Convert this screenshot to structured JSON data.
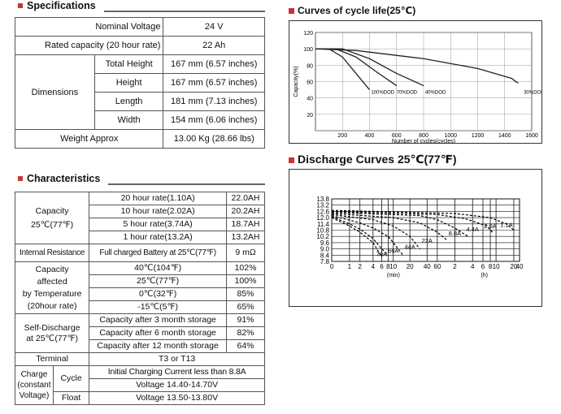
{
  "specs": {
    "title": "Specifications",
    "nominal_voltage_label": "Nominal Voltage",
    "nominal_voltage": "24 V",
    "rated_capacity_label": "Rated capacity (20 hour rate)",
    "rated_capacity": "22 Ah",
    "dimensions_label": "Dimensions",
    "total_height_label": "Total Height",
    "total_height": "167 mm (6.57 inches)",
    "height_label": "Height",
    "height": "167 mm (6.57 inches)",
    "length_label": "Length",
    "length": "181 mm (7.13 inches)",
    "width_label": "Width",
    "width": "154 mm (6.06 inches)",
    "weight_label": "Weight Approx",
    "weight": "13.00 Kg (28.66 lbs)"
  },
  "characteristics": {
    "title": "Characteristics",
    "capacity_label": "Capacity",
    "capacity_temp": "25℃(77℉)",
    "capacity_rows": [
      {
        "rate": "20 hour rate(1.10A)",
        "value": "22.0AH"
      },
      {
        "rate": "10 hour rate(2.02A)",
        "value": "20.2AH"
      },
      {
        "rate": "5 hour rate(3.74A)",
        "value": "18.7AH"
      },
      {
        "rate": "1 hour rate(13.2A)",
        "value": "13.2AH"
      }
    ],
    "internal_resistance_label": "Internal Resistance",
    "internal_resistance_cond": "Full charged Battery at 25℃(77℉)",
    "internal_resistance_value": "9 mΩ",
    "temp_label_1": "Capacity",
    "temp_label_2": "affected",
    "temp_label_3": "by Temperature",
    "temp_label_4": "(20hour rate)",
    "temp_rows": [
      {
        "temp": "40℃(104℉)",
        "value": "102%"
      },
      {
        "temp": "25℃(77℉)",
        "value": "100%"
      },
      {
        "temp": "0℃(32℉)",
        "value": "85%"
      },
      {
        "temp": "-15℃(5℉)",
        "value": "65%"
      }
    ],
    "self_discharge_label_1": "Self-Discharge",
    "self_discharge_label_2": "at 25℃(77℉)",
    "self_rows": [
      {
        "period": "Capacity after 3 month storage",
        "value": "91%"
      },
      {
        "period": "Capacity after 6 month storage",
        "value": "82%"
      },
      {
        "period": "Capacity after 12 month storage",
        "value": "64%"
      }
    ],
    "terminal_label": "Terminal",
    "terminal_value": "T3 or T13",
    "charge_label_1": "Charge",
    "charge_label_2": "(constant",
    "charge_label_3": "Voltage)",
    "cycle_label": "Cycle",
    "cycle_current": "Initial Charging Current less than 8.8A",
    "cycle_voltage": "Voltage 14.40-14.70V",
    "float_label": "Float",
    "float_voltage": "Voltage 13.50-13.80V"
  },
  "cycle_chart": {
    "title": "Curves of cycle life(25℃)",
    "ylabel": "Capacity(%)",
    "xlabel": "Number of cycles(cycles)",
    "yticks": [
      "120",
      "100",
      "80",
      "60",
      "40",
      "20"
    ],
    "xticks": [
      "200",
      "400",
      "600",
      "800",
      "1000",
      "1200",
      "1400",
      "1600"
    ],
    "dod_labels": [
      "100%DOD",
      "70%DOD",
      "40%DOD",
      "30%DOD"
    ]
  },
  "discharge_chart": {
    "title": "Discharge Curves 25℃(77℉)",
    "yticks": [
      "13.8",
      "13.2",
      "12.6",
      "12.0",
      "11.4",
      "10.8",
      "10.2",
      "9.6",
      "9.0",
      "8.4",
      "7.8"
    ],
    "xticks": [
      "0",
      "1",
      "2",
      "4",
      "6",
      "8",
      "10",
      "20",
      "40",
      "60",
      "2",
      "4",
      "6",
      "8",
      "10",
      "20",
      "40"
    ],
    "min_label": "(min)",
    "hour_label": "(h)",
    "curve_labels": [
      "79A",
      "66A",
      "44A",
      "22A",
      "8.8A",
      "4.4A",
      "2.0A",
      "1.1A"
    ]
  },
  "chart_data": [
    {
      "type": "line",
      "title": "Curves of cycle life(25℃)",
      "xlabel": "Number of cycles(cycles)",
      "ylabel": "Capacity(%)",
      "xlim": [
        0,
        1600
      ],
      "ylim": [
        0,
        120
      ],
      "grid": true,
      "series": [
        {
          "name": "100%DOD",
          "x": [
            0,
            100,
            200,
            300,
            400
          ],
          "y": [
            100,
            100,
            90,
            70,
            50
          ]
        },
        {
          "name": "70%DOD",
          "x": [
            0,
            150,
            300,
            450,
            600
          ],
          "y": [
            100,
            100,
            90,
            72,
            55
          ]
        },
        {
          "name": "40%DOD",
          "x": [
            0,
            200,
            400,
            600,
            800
          ],
          "y": [
            100,
            100,
            88,
            70,
            55
          ]
        },
        {
          "name": "30%DOD",
          "x": [
            0,
            300,
            800,
            1200,
            1450,
            1500
          ],
          "y": [
            100,
            98,
            88,
            76,
            64,
            58
          ]
        }
      ]
    },
    {
      "type": "line",
      "title": "Discharge Curves 25℃(77℉)",
      "ylim": [
        7.8,
        13.8
      ],
      "grid": true,
      "series": [
        {
          "name": "79A",
          "x": [
            0,
            1,
            2,
            4,
            6
          ],
          "y": [
            12.0,
            11.2,
            10.6,
            9.6,
            8.2
          ]
        },
        {
          "name": "66A",
          "x": [
            0,
            1,
            2,
            4,
            6,
            8
          ],
          "y": [
            12.1,
            11.4,
            10.9,
            10.0,
            9.0,
            8.4
          ]
        },
        {
          "name": "44A",
          "x": [
            0,
            2,
            4,
            8,
            10,
            15
          ],
          "y": [
            12.2,
            11.5,
            11.0,
            10.2,
            9.6,
            8.4
          ]
        },
        {
          "name": "22A",
          "x": [
            0,
            4,
            10,
            20,
            30
          ],
          "y": [
            12.3,
            11.8,
            11.2,
            10.2,
            9.0
          ]
        },
        {
          "name": "8.8A",
          "x": [
            0,
            10,
            30,
            60,
            90
          ],
          "y": [
            12.4,
            12.0,
            11.5,
            10.6,
            9.8
          ]
        },
        {
          "name": "4.4A",
          "x": [
            0,
            30,
            60,
            120,
            200
          ],
          "y": [
            12.5,
            12.2,
            11.8,
            11.0,
            10.2
          ]
        },
        {
          "name": "2.0A",
          "x": [
            0,
            60,
            180,
            420,
            540
          ],
          "y": [
            12.6,
            12.3,
            11.9,
            11.2,
            10.5
          ]
        },
        {
          "name": "1.1A",
          "x": [
            0,
            120,
            480,
            900,
            1200
          ],
          "y": [
            12.7,
            12.4,
            12.0,
            11.4,
            10.8
          ]
        }
      ]
    }
  ]
}
